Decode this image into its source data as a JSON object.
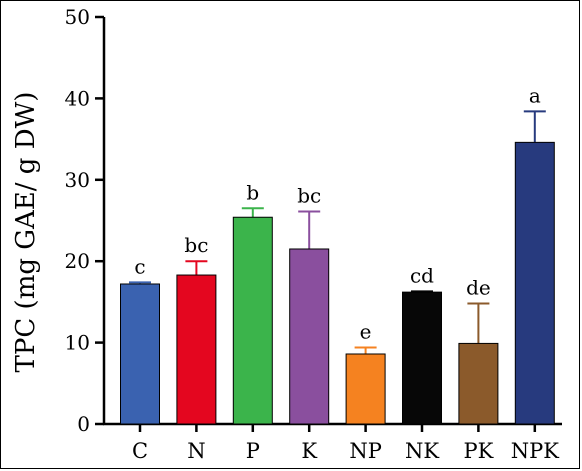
{
  "chart_data": {
    "type": "bar",
    "title": "",
    "xlabel": "",
    "ylabel": "TPC (mg GAE/ g DW)",
    "ylim": [
      0,
      50
    ],
    "yticks": [
      0,
      10,
      20,
      30,
      40,
      50
    ],
    "categories": [
      "C",
      "N",
      "P",
      "K",
      "NP",
      "NK",
      "PK",
      "NPK"
    ],
    "values": [
      17.2,
      18.3,
      25.4,
      21.5,
      8.6,
      16.2,
      9.9,
      34.6
    ],
    "errors": [
      0.2,
      1.7,
      1.1,
      4.6,
      0.8,
      0.1,
      4.9,
      3.8
    ],
    "significance": [
      "c",
      "bc",
      "b",
      "bc",
      "e",
      "cd",
      "de",
      "a"
    ],
    "colors": [
      "#3a62b0",
      "#e4061f",
      "#3bb44b",
      "#8a4f9e",
      "#f58220",
      "#070707",
      "#8b5a2b",
      "#273a7e"
    ],
    "grid": false,
    "legend": "none"
  }
}
